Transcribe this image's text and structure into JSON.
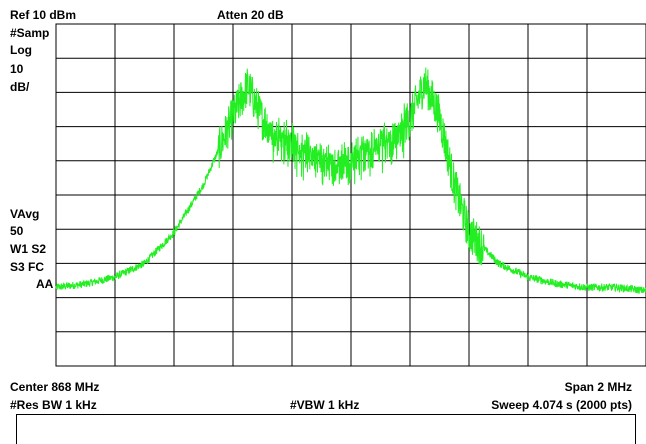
{
  "header": {
    "ref_level": "Ref 10 dBm",
    "attenuation": "Atten 20 dB"
  },
  "side_left": {
    "detector": "#Samp",
    "scale_type": "Log",
    "scale_value": "10",
    "scale_unit": "dB/",
    "avg_label": "VAvg",
    "avg_count": "50",
    "trace_mode_1": "W1  S2",
    "trace_mode_2": "S3  FC",
    "coupling": "AA"
  },
  "footer": {
    "center_freq": "Center 868 MHz",
    "span": "Span 2 MHz",
    "rbw": "#Res BW 1 kHz",
    "vbw": "#VBW 1 kHz",
    "sweep": "Sweep 4.074 s (2000 pts)"
  },
  "colors": {
    "trace": "#22ee22",
    "grid": "#000000",
    "background": "#ffffff"
  },
  "chart_data": {
    "type": "line",
    "title": "",
    "xlabel": "",
    "ylabel": "",
    "x_center_mhz": 868,
    "x_span_mhz": 2,
    "xlim": [
      867,
      869
    ],
    "ylim": [
      -90,
      10
    ],
    "y_divisions": 10,
    "x_divisions": 10,
    "grid": true,
    "points": 2000,
    "series": [
      {
        "name": "",
        "x": [
          867.0,
          867.1,
          867.2,
          867.3,
          867.4,
          867.5,
          867.6,
          867.65,
          867.7,
          867.75,
          867.8,
          867.85,
          867.9,
          867.95,
          868.0,
          868.05,
          868.1,
          868.15,
          868.2,
          868.25,
          868.3,
          868.35,
          868.4,
          868.5,
          868.6,
          868.7,
          868.8,
          868.9,
          869.0
        ],
        "y": [
          -67,
          -66,
          -64,
          -60,
          -51,
          -37,
          -17,
          -8,
          -18,
          -21,
          -23,
          -26,
          -28,
          -29,
          -28,
          -26,
          -23,
          -21,
          -18,
          -7,
          -17,
          -37,
          -51,
          -60,
          -64,
          -66,
          -67,
          -67,
          -68
        ]
      }
    ]
  }
}
